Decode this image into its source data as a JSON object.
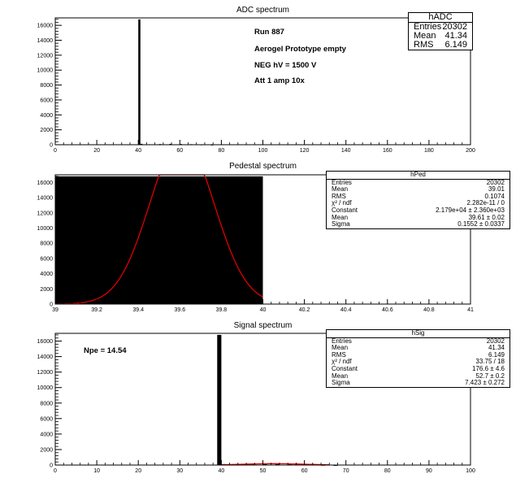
{
  "chart_data": [
    {
      "type": "bar",
      "title": "ADC spectrum",
      "xlim": [
        0,
        200
      ],
      "ylim": [
        0,
        17000
      ],
      "xticks": [
        "0",
        "20",
        "40",
        "60",
        "80",
        "100",
        "120",
        "140",
        "160",
        "180",
        "200"
      ],
      "yticks": [
        "0",
        "2000",
        "4000",
        "6000",
        "8000",
        "10000",
        "12000",
        "14000",
        "16000"
      ],
      "bins": [
        {
          "x": 40,
          "y": 16800
        },
        {
          "x": 41,
          "y": 120
        },
        {
          "x": 45,
          "y": 60
        },
        {
          "x": 50,
          "y": 90
        },
        {
          "x": 55,
          "y": 110
        },
        {
          "x": 60,
          "y": 100
        },
        {
          "x": 65,
          "y": 70
        },
        {
          "x": 70,
          "y": 40
        },
        {
          "x": 75,
          "y": 15
        }
      ],
      "stats": {
        "name": "hADC",
        "rows": [
          {
            "label": "Entries",
            "value": "20302"
          },
          {
            "label": "Mean",
            "value": "41.34"
          },
          {
            "label": "RMS",
            "value": "6.149"
          }
        ]
      },
      "annotations": [
        "Run  887",
        "Aerogel Prototype empty",
        "NEG hV = 1500 V",
        "Att 1 amp 10x"
      ]
    },
    {
      "type": "bar",
      "title": "Pedestal spectrum",
      "xlim": [
        39,
        41
      ],
      "ylim": [
        0,
        17000
      ],
      "xticks": [
        "39",
        "39.2",
        "39.4",
        "39.6",
        "39.8",
        "40",
        "40.2",
        "40.4",
        "40.6",
        "40.8",
        "41"
      ],
      "yticks": [
        "0",
        "2000",
        "4000",
        "6000",
        "8000",
        "10000",
        "12000",
        "14000",
        "16000"
      ],
      "bins": [
        {
          "x0": 39,
          "x1": 40,
          "y": 16800
        }
      ],
      "fit": {
        "constant": 21790,
        "mean": 39.61,
        "sigma": 0.1552,
        "range": [
          39,
          40
        ]
      },
      "stats": {
        "name": "hPed",
        "rows": [
          {
            "label": "Entries",
            "value": "20302"
          },
          {
            "label": "Mean",
            "value": "39.01"
          },
          {
            "label": "RMS",
            "value": "0.1074"
          },
          {
            "label": "χ² / ndf",
            "value": "2.282e-11 / 0"
          },
          {
            "label": "Constant",
            "value": "2.179e+04 ± 2.360e+03"
          },
          {
            "label": "Mean",
            "value": "39.61 ± 0.02"
          },
          {
            "label": "Sigma",
            "value": "0.1552 ± 0.0337"
          }
        ]
      }
    },
    {
      "type": "bar",
      "title": "Signal spectrum",
      "xlim": [
        0,
        100
      ],
      "ylim": [
        0,
        17000
      ],
      "xticks": [
        "0",
        "10",
        "20",
        "30",
        "40",
        "50",
        "60",
        "70",
        "80",
        "90",
        "100"
      ],
      "yticks": [
        "0",
        "2000",
        "4000",
        "6000",
        "8000",
        "10000",
        "12000",
        "14000",
        "16000"
      ],
      "bins": [
        {
          "x": 39,
          "y": 16800
        },
        {
          "x": 40,
          "y": 120
        },
        {
          "x": 43,
          "y": 60
        },
        {
          "x": 47,
          "y": 90
        },
        {
          "x": 50,
          "y": 100
        },
        {
          "x": 53,
          "y": 110
        },
        {
          "x": 56,
          "y": 90
        },
        {
          "x": 60,
          "y": 60
        },
        {
          "x": 64,
          "y": 30
        },
        {
          "x": 67,
          "y": 10
        }
      ],
      "fit": {
        "constant": 176.6,
        "mean": 52.7,
        "sigma": 7.423,
        "range": [
          40,
          66
        ]
      },
      "stats": {
        "name": "hSig",
        "rows": [
          {
            "label": "Entries",
            "value": "20302"
          },
          {
            "label": "Mean",
            "value": "41.34"
          },
          {
            "label": "RMS",
            "value": "6.149"
          },
          {
            "label": "χ² / ndf",
            "value": "33.75 / 18"
          },
          {
            "label": "Constant",
            "value": "176.6 ± 4.6"
          },
          {
            "label": "Mean",
            "value": "52.7 ± 0.2"
          },
          {
            "label": "Sigma",
            "value": "7.423 ± 0.272"
          }
        ]
      },
      "annotations": [
        "Npe = 14.54"
      ]
    }
  ],
  "colors": {
    "histogram": "#000000",
    "fit": "#e00000",
    "background": "#ffffff"
  }
}
